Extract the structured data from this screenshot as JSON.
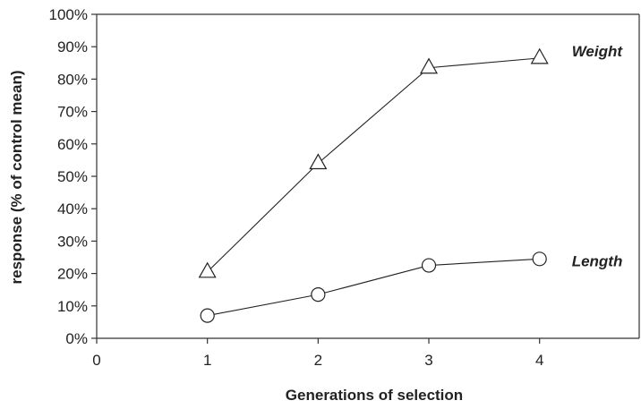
{
  "chart_data": {
    "type": "line",
    "xlabel": "Generations of selection",
    "ylabel": "response (% of control mean)",
    "xlim": [
      0,
      4.9
    ],
    "ylim": [
      0,
      100
    ],
    "x_ticks": [
      0,
      1,
      2,
      3,
      4
    ],
    "x_tick_labels": [
      "0",
      "1",
      "2",
      "3",
      "4"
    ],
    "y_ticks": [
      0,
      10,
      20,
      30,
      40,
      50,
      60,
      70,
      80,
      90,
      100
    ],
    "y_tick_labels": [
      "0%",
      "10%",
      "20%",
      "30%",
      "40%",
      "50%",
      "60%",
      "70%",
      "80%",
      "90%",
      "100%"
    ],
    "grid": false,
    "series": [
      {
        "name": "Weight",
        "marker": "triangle",
        "x": [
          1,
          2,
          3,
          4
        ],
        "y": [
          20.5,
          54,
          83.5,
          86.5
        ]
      },
      {
        "name": "Length",
        "marker": "circle",
        "x": [
          1,
          2,
          3,
          4
        ],
        "y": [
          7,
          13.5,
          22.5,
          24.5
        ]
      }
    ]
  }
}
